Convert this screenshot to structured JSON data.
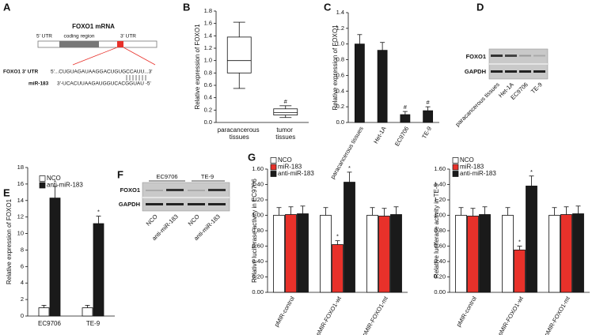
{
  "panel_labels": [
    "A",
    "B",
    "C",
    "D",
    "E",
    "F",
    "G"
  ],
  "diagram_a": {
    "title": "FOXO1 mRNA",
    "utr5": "5' UTR",
    "coding": "coding region",
    "utr3": "3' UTR",
    "target_label": "FOXO1 3' UTR",
    "target_seq": "5'...CUGUAGAUAAGGACUGUGCCAUU...3'",
    "mirna_label": "miR-183",
    "mirna_seq": "3'-UCACUUAAGAUGGUCACGGUAU -5'"
  },
  "blot_d": {
    "rows": [
      "FOXO1",
      "GAPDH"
    ],
    "lanes": [
      "paracancerous tissues",
      "Het-1A",
      "EC9706",
      "TE-9"
    ]
  },
  "blot_f": {
    "groups": [
      "EC9706",
      "TE-9"
    ],
    "rows": [
      "FOXO1",
      "GAPDH"
    ],
    "lanes": [
      "NCO",
      "anti-miR-183",
      "NCO",
      "anti-miR-183"
    ]
  },
  "chart_data": [
    {
      "type": "box",
      "ylabel": "Relative expression of FOXO1",
      "categories": [
        "paracancerous tissues",
        "tumor tissues"
      ],
      "boxes": [
        {
          "min": 0.55,
          "q1": 0.8,
          "median": 1.0,
          "q3": 1.38,
          "max": 1.62
        },
        {
          "min": 0.08,
          "q1": 0.12,
          "median": 0.16,
          "q3": 0.22,
          "max": 0.27
        }
      ],
      "significance": [
        null,
        "#"
      ],
      "ylim": [
        0,
        1.8
      ],
      "yticks": [
        {
          "value": 0,
          "label": "0.0"
        },
        {
          "value": 0.2,
          "label": "0.2"
        },
        {
          "value": 0.4,
          "label": "0.4"
        },
        {
          "value": 0.6,
          "label": "0.6"
        },
        {
          "value": 0.8,
          "label": "0.8"
        },
        {
          "value": 1.0,
          "label": "1.0"
        },
        {
          "value": 1.2,
          "label": "1.2"
        },
        {
          "value": 1.4,
          "label": "1.4"
        },
        {
          "value": 1.6,
          "label": "1.6"
        },
        {
          "value": 1.8,
          "label": "1.8"
        }
      ]
    },
    {
      "type": "bar",
      "ylabel": "Relative expression of FOXO1",
      "categories": [
        "paracancerous tissues",
        "Het-1A",
        "EC9706",
        "TE-9"
      ],
      "values": [
        1.0,
        0.92,
        0.1,
        0.15
      ],
      "errors": [
        0.12,
        0.1,
        0.04,
        0.05
      ],
      "significance": [
        null,
        null,
        "#",
        "#"
      ],
      "color": "#1a1a1a",
      "ylim": [
        0,
        1.4
      ],
      "yticks": [
        {
          "value": 0,
          "label": "0.0"
        },
        {
          "value": 0.2,
          "label": "0.2"
        },
        {
          "value": 0.4,
          "label": "0.4"
        },
        {
          "value": 0.6,
          "label": "0.6"
        },
        {
          "value": 0.8,
          "label": "0.8"
        },
        {
          "value": 1.0,
          "label": "1.0"
        },
        {
          "value": 1.2,
          "label": "1.2"
        },
        {
          "value": 1.4,
          "label": "1.4"
        }
      ]
    },
    {
      "type": "bar",
      "ylabel": "Relative expression of FOXO1",
      "categories": [
        "EC9706",
        "TE-9"
      ],
      "series": [
        {
          "name": "NCO",
          "color": "#ffffff",
          "values": [
            1.0,
            1.0
          ],
          "errors": [
            0.3,
            0.3
          ]
        },
        {
          "name": "anti-miR-183",
          "color": "#1a1a1a",
          "values": [
            14.3,
            11.2
          ],
          "errors": [
            1.4,
            0.9
          ],
          "significance": [
            "*",
            "*"
          ]
        }
      ],
      "ylim": [
        0,
        18
      ],
      "yticks": [
        0,
        2,
        4,
        6,
        8,
        10,
        12,
        14,
        16,
        18
      ]
    },
    {
      "type": "bar",
      "ylabel": "Relative luciferase activity in EC9706",
      "categories": [
        "pMIR-control",
        "pMIR-FOXO1-wt",
        "pMIR-FOXO1-mt"
      ],
      "series": [
        {
          "name": "NCO",
          "color": "#ffffff",
          "values": [
            1.0,
            1.0,
            1.0
          ],
          "errors": [
            0.1,
            0.1,
            0.1
          ]
        },
        {
          "name": "miR-183",
          "color": "#e8312a",
          "values": [
            1.01,
            0.62,
            0.99
          ],
          "errors": [
            0.1,
            0.05,
            0.1
          ],
          "significance": [
            null,
            "*",
            null
          ]
        },
        {
          "name": "anti-miR-183",
          "color": "#1a1a1a",
          "values": [
            1.02,
            1.43,
            1.01
          ],
          "errors": [
            0.1,
            0.13,
            0.1
          ],
          "significance": [
            null,
            "*",
            null
          ]
        }
      ],
      "ylim": [
        0,
        1.6
      ],
      "yticks": [
        {
          "value": 0,
          "label": "0.00"
        },
        {
          "value": 0.2,
          "label": "0.20"
        },
        {
          "value": 0.4,
          "label": "0.40"
        },
        {
          "value": 0.6,
          "label": "0.60"
        },
        {
          "value": 0.8,
          "label": "0.80"
        },
        {
          "value": 1.0,
          "label": "1.00"
        },
        {
          "value": 1.2,
          "label": "1.20"
        },
        {
          "value": 1.4,
          "label": "1.40"
        },
        {
          "value": 1.6,
          "label": "1.60"
        }
      ]
    },
    {
      "type": "bar",
      "ylabel": "Relative luciferase activity in TE-9",
      "categories": [
        "pMIR-control",
        "pMIR-FOXO1-wt",
        "pMIR-FOXO1-mt"
      ],
      "series": [
        {
          "name": "NCO",
          "color": "#ffffff",
          "values": [
            1.0,
            1.0,
            1.0
          ],
          "errors": [
            0.1,
            0.1,
            0.1
          ]
        },
        {
          "name": "miR-183",
          "color": "#e8312a",
          "values": [
            0.99,
            0.55,
            1.01
          ],
          "errors": [
            0.1,
            0.05,
            0.1
          ],
          "significance": [
            null,
            "*",
            null
          ]
        },
        {
          "name": "anti-miR-183",
          "color": "#1a1a1a",
          "values": [
            1.01,
            1.38,
            1.02
          ],
          "errors": [
            0.1,
            0.13,
            0.1
          ],
          "significance": [
            null,
            "*",
            null
          ]
        }
      ],
      "ylim": [
        0,
        1.6
      ],
      "yticks": [
        {
          "value": 0,
          "label": "0.00"
        },
        {
          "value": 0.2,
          "label": "0.20"
        },
        {
          "value": 0.4,
          "label": "0.40"
        },
        {
          "value": 0.6,
          "label": "0.60"
        },
        {
          "value": 0.8,
          "label": "0.80"
        },
        {
          "value": 1.0,
          "label": "1.00"
        },
        {
          "value": 1.2,
          "label": "1.20"
        },
        {
          "value": 1.4,
          "label": "1.40"
        },
        {
          "value": 1.6,
          "label": "1.60"
        }
      ]
    }
  ]
}
